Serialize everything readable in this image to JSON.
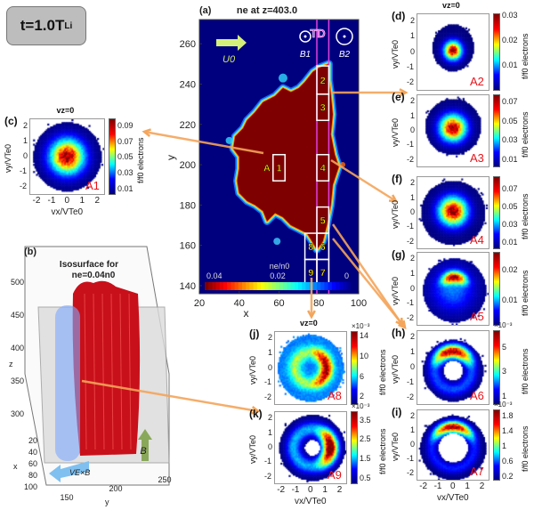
{
  "time_label": {
    "main": "t=1.0T",
    "sub": "Li"
  },
  "colors": {
    "td_line": "#e040e0",
    "box": "#ffffff",
    "box_label": "#ffe800",
    "arrow": "#f4a55a",
    "region_label": "#e8141b",
    "bg_plasma": "#00007f",
    "dense": "#7f0000"
  },
  "chart_data": [
    {
      "id": "a",
      "type": "heatmap",
      "panel_label": "(a)",
      "title": "ne at z=403.0",
      "xlabel": "x",
      "ylabel": "y",
      "xlim": [
        20,
        100
      ],
      "ylim": [
        136,
        272
      ],
      "xticks": [
        20,
        40,
        60,
        80,
        100
      ],
      "yticks": [
        140,
        160,
        180,
        200,
        220,
        240,
        260
      ],
      "colorbar": {
        "label": "ne/n0",
        "ticks": [
          "0.04",
          "0.02",
          "0"
        ],
        "range": [
          0,
          0.04
        ],
        "colormap": "jet-reversed"
      },
      "td_label": "TD",
      "td_lines_x": [
        79,
        85
      ],
      "flow_label": "U0",
      "b1_label": "B1",
      "b2_label": "B2",
      "boxes": [
        {
          "num": "1",
          "x": [
            57,
            63
          ],
          "y": [
            192,
            205
          ],
          "tag": "A"
        },
        {
          "num": "2",
          "x": [
            79,
            85
          ],
          "y": [
            235,
            249
          ]
        },
        {
          "num": "3",
          "x": [
            79,
            85
          ],
          "y": [
            222,
            235
          ]
        },
        {
          "num": "4",
          "x": [
            79,
            85
          ],
          "y": [
            192,
            205
          ]
        },
        {
          "num": "5",
          "x": [
            79,
            85
          ],
          "y": [
            166,
            179
          ]
        },
        {
          "num": "6",
          "x": [
            79,
            85
          ],
          "y": [
            153,
            166
          ]
        },
        {
          "num": "7",
          "x": [
            79,
            85
          ],
          "y": [
            140,
            153
          ]
        },
        {
          "num": "8",
          "x": [
            73,
            79
          ],
          "y": [
            153,
            166
          ]
        },
        {
          "num": "9",
          "x": [
            73,
            79
          ],
          "y": [
            140,
            153
          ]
        }
      ]
    },
    {
      "id": "b",
      "type": "isosurface",
      "panel_label": "(b)",
      "title": "Isosurface for",
      "title2": "ne=0.04n0",
      "zlabel": "z",
      "xlabel": "x",
      "ylabel": "y",
      "zticks": [
        300,
        350,
        400,
        450,
        500
      ],
      "xticks": [
        20,
        40,
        60,
        80,
        100
      ],
      "yticks": [
        150,
        200,
        250
      ],
      "b_label": "B",
      "v_label": "VE×B"
    },
    {
      "id": "c",
      "type": "heatmap",
      "panel_label": "(c)",
      "title": "vz=0",
      "region": "A1",
      "xlabel": "vx/VTe0",
      "ylabel": "vy/VTe0",
      "xlim": [
        -2.5,
        2.5
      ],
      "ylim": [
        -2.5,
        2.5
      ],
      "xticks": [
        -2,
        -1,
        0,
        1,
        2
      ],
      "yticks": [
        -2,
        -1,
        0,
        1,
        2
      ],
      "colorbar": {
        "label": "f/f0 electrons",
        "multiplier": "",
        "ticks": [
          0.01,
          0.03,
          0.05,
          0.07,
          0.09
        ],
        "range": [
          0.003,
          0.1
        ]
      }
    },
    {
      "id": "d",
      "type": "heatmap",
      "panel_label": "(d)",
      "title": "vz=0",
      "region": "A2",
      "xlabel": "",
      "ylabel": "vy/VTe0",
      "xlim": [
        -2.5,
        2.5
      ],
      "ylim": [
        -2.5,
        2.5
      ],
      "xticks": [],
      "yticks": [
        -2,
        -1,
        0,
        1,
        2
      ],
      "colorbar": {
        "label": "f/f0 electrons",
        "multiplier": "",
        "ticks": [
          0.01,
          0.02,
          0.03
        ],
        "range": [
          0,
          0.031
        ]
      }
    },
    {
      "id": "e",
      "type": "heatmap",
      "panel_label": "(e)",
      "title": "",
      "region": "A3",
      "xlabel": "",
      "ylabel": "vy/VTe0",
      "xlim": [
        -2.5,
        2.5
      ],
      "ylim": [
        -2.5,
        2.5
      ],
      "xticks": [],
      "yticks": [
        -2,
        -1,
        0,
        1,
        2
      ],
      "colorbar": {
        "label": "f/f0 electrons",
        "multiplier": "",
        "ticks": [
          0.01,
          0.03,
          0.05,
          0.07
        ],
        "range": [
          0.003,
          0.078
        ]
      }
    },
    {
      "id": "f",
      "type": "heatmap",
      "panel_label": "(f)",
      "title": "",
      "region": "A4",
      "xlabel": "",
      "ylabel": "vy/VTe0",
      "xlim": [
        -2.5,
        2.5
      ],
      "ylim": [
        -2.5,
        2.5
      ],
      "xticks": [],
      "yticks": [
        -2,
        -1,
        0,
        1,
        2
      ],
      "colorbar": {
        "label": "f/f0 electrons",
        "multiplier": "",
        "ticks": [
          0.01,
          0.03,
          0.05,
          0.07
        ],
        "range": [
          0.003,
          0.085
        ]
      }
    },
    {
      "id": "g",
      "type": "heatmap",
      "panel_label": "(g)",
      "title": "",
      "region": "A5",
      "xlabel": "",
      "ylabel": "vy/VTe0",
      "xlim": [
        -2.5,
        2.5
      ],
      "ylim": [
        -2.5,
        2.5
      ],
      "xticks": [],
      "yticks": [
        -2,
        -1,
        0,
        1,
        2
      ],
      "colorbar": {
        "label": "f/f0 electrons",
        "multiplier": "",
        "ticks": [
          0.01,
          0.02
        ],
        "range": [
          0.002,
          0.026
        ]
      }
    },
    {
      "id": "h",
      "type": "heatmap",
      "panel_label": "(h)",
      "title": "",
      "region": "A6",
      "xlabel": "",
      "ylabel": "vy/VTe0",
      "xlim": [
        -2.5,
        2.5
      ],
      "ylim": [
        -2.5,
        2.5
      ],
      "xticks": [],
      "yticks": [
        -2,
        -1,
        0,
        1,
        2
      ],
      "colorbar": {
        "label": "f/f0 electrons",
        "multiplier": "×10⁻³",
        "ticks": [
          1,
          3,
          5
        ],
        "range": [
          0.3,
          6.5
        ]
      }
    },
    {
      "id": "i",
      "type": "heatmap",
      "panel_label": "(i)",
      "title": "",
      "region": "A7",
      "xlabel": "vx/VTe0",
      "ylabel": "vy/VTe0",
      "xlim": [
        -2.5,
        2.5
      ],
      "ylim": [
        -2.5,
        2.5
      ],
      "xticks": [
        -2,
        -1,
        0,
        1,
        2
      ],
      "yticks": [
        -2,
        -1,
        0,
        1,
        2
      ],
      "colorbar": {
        "label": "f/f0 electrons",
        "multiplier": "×10⁻³",
        "ticks": [
          0.2,
          0.6,
          1,
          1.4,
          1.8
        ],
        "range": [
          0.1,
          2.0
        ]
      }
    },
    {
      "id": "j",
      "type": "heatmap",
      "panel_label": "(j)",
      "title": "vz=0",
      "region": "A8",
      "xlabel": "",
      "ylabel": "vy/VTe0",
      "xlim": [
        -2.5,
        2.5
      ],
      "ylim": [
        -2.5,
        2.5
      ],
      "xticks": [],
      "yticks": [
        -2,
        -1,
        0,
        1,
        2
      ],
      "colorbar": {
        "label": "f/f0 electrons",
        "multiplier": "×10⁻³",
        "ticks": [
          2,
          6,
          10,
          14
        ],
        "range": [
          0.5,
          15
        ]
      }
    },
    {
      "id": "k",
      "type": "heatmap",
      "panel_label": "(k)",
      "title": "",
      "region": "A9",
      "xlabel": "vx/VTe0",
      "ylabel": "vy/VTe0",
      "xlim": [
        -2.5,
        2.5
      ],
      "ylim": [
        -2.5,
        2.5
      ],
      "xticks": [
        -2,
        -1,
        0,
        1,
        2
      ],
      "yticks": [
        -2,
        -1,
        0,
        1,
        2
      ],
      "colorbar": {
        "label": "f/f0 electrons",
        "multiplier": "×10⁻³",
        "ticks": [
          0.5,
          1.5,
          2.5,
          3.5
        ],
        "range": [
          0.2,
          4.0
        ]
      }
    }
  ]
}
